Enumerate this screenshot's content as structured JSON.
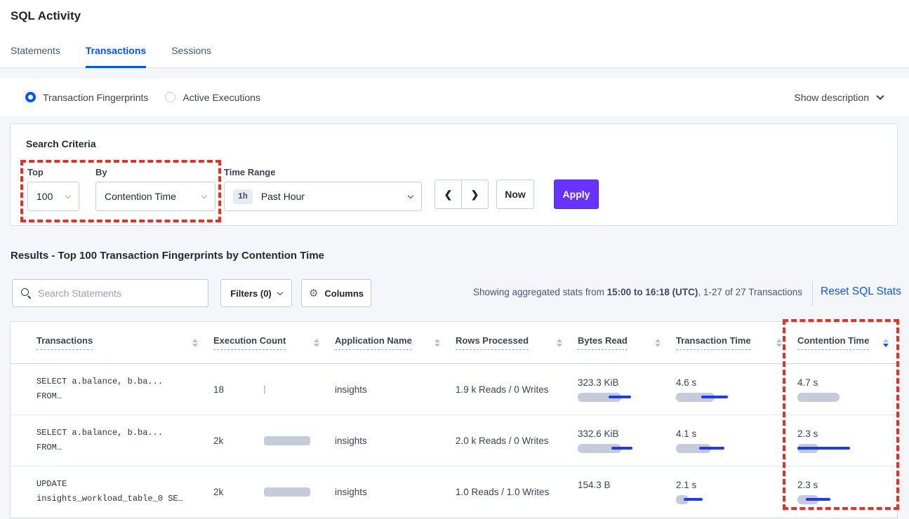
{
  "header": {
    "title": "SQL Activity",
    "tabs": [
      {
        "label": "Statements",
        "active": false
      },
      {
        "label": "Transactions",
        "active": true
      },
      {
        "label": "Sessions",
        "active": false
      }
    ]
  },
  "view_bar": {
    "fingerprints_label": "Transaction Fingerprints",
    "fingerprints_selected": true,
    "active_exec_label": "Active Executions",
    "active_exec_selected": false,
    "show_description": "Show description"
  },
  "criteria": {
    "title": "Search Criteria",
    "top_label": "Top",
    "top_value": "100",
    "by_label": "By",
    "by_value": "Contention Time",
    "time_label": "Time Range",
    "time_badge": "1h",
    "time_value": "Past Hour",
    "now_label": "Now",
    "apply_label": "Apply"
  },
  "icons": {
    "prev_arrow": "❮",
    "next_arrow": "❯",
    "gear": "⚙"
  },
  "results": {
    "heading": "Results - Top 100 Transaction Fingerprints by Contention Time",
    "search_placeholder": "Search Statements",
    "filters_label": "Filters (0)",
    "columns_label": "Columns",
    "stats_prefix": "Showing aggregated stats from ",
    "stats_range": "15:00 to 16:18 (UTC)",
    "stats_suffix": ", 1-27 of 27 Transactions",
    "reset_label": "Reset SQL Stats"
  },
  "annotations": {
    "color": "#ee2e24",
    "boxes": [
      "top-by-selectors",
      "contention-time-column"
    ]
  },
  "table": {
    "columns": [
      {
        "label": "Transactions"
      },
      {
        "label": "Execution Count"
      },
      {
        "label": "Application Name"
      },
      {
        "label": "Rows Processed"
      },
      {
        "label": "Bytes Read"
      },
      {
        "label": "Transaction Time"
      },
      {
        "label": "Contention Time",
        "sorted": "desc"
      }
    ],
    "rows": [
      {
        "query_line1": "SELECT a.balance, b.ba...",
        "query_line2": "FROM…",
        "exec_count": "18",
        "exec_bar_w": 2,
        "app_name": "insights",
        "rows_processed": "1.9 k Reads / 0 Writes",
        "bytes_read": "323.3 KiB",
        "bytes_bar_w": 62,
        "bytes_line_l": 44,
        "bytes_line_w": 32,
        "txn_time": "4.6 s",
        "txn_bar_w": 55,
        "txn_line_l": 36,
        "txn_line_w": 38,
        "cont_time": "4.7 s",
        "cont_bar_w": 60,
        "cont_line_l": 0,
        "cont_line_w": 0
      },
      {
        "query_line1": "SELECT a.balance, b.ba...",
        "query_line2": "FROM…",
        "exec_count": "2k",
        "exec_bar_w": 66,
        "app_name": "insights",
        "rows_processed": "2.0 k Reads / 0 Writes",
        "bytes_read": "332.6 KiB",
        "bytes_bar_w": 62,
        "bytes_line_l": 48,
        "bytes_line_w": 30,
        "txn_time": "4.1 s",
        "txn_bar_w": 50,
        "txn_line_l": 33,
        "txn_line_w": 36,
        "cont_time": "2.3 s",
        "cont_bar_w": 30,
        "cont_line_l": 0,
        "cont_line_w": 75
      },
      {
        "query_line1": "UPDATE",
        "query_line2": "insights_workload_table_0 SE…",
        "exec_count": "2k",
        "exec_bar_w": 66,
        "app_name": "insights",
        "rows_processed": "1.0 Reads / 1.0 Writes",
        "bytes_read": "154.3 B",
        "bytes_bar_w": 0,
        "bytes_line_l": 0,
        "bytes_line_w": 0,
        "txn_time": "2.1 s",
        "txn_bar_w": 18,
        "txn_line_l": 11,
        "txn_line_w": 27,
        "cont_time": "2.3 s",
        "cont_bar_w": 30,
        "cont_line_l": 12,
        "cont_line_w": 35
      }
    ]
  }
}
